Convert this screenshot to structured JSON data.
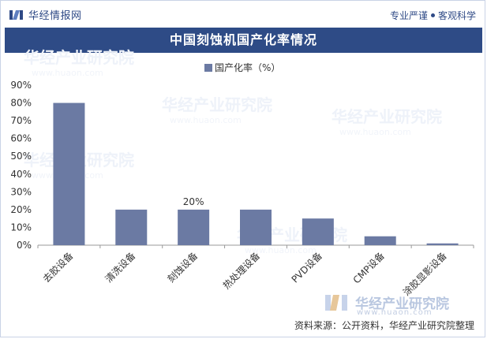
{
  "header": {
    "brand": "华经情报网",
    "tagline_left": "专业严谨",
    "tagline_right": "客观科学"
  },
  "title": "中国刻蚀机国产化率情况",
  "source": "资料来源：公开资料，华经产业研究院整理",
  "watermark": {
    "text": "华经产业研究院",
    "url": "www.huaon.com"
  },
  "colors": {
    "bar": "#6b7aa3",
    "title_bg": "#2e4b86",
    "brand": "#2f4a86"
  },
  "chart_data": {
    "type": "bar",
    "categories": [
      "去胶设备",
      "清洗设备",
      "刻蚀设备",
      "热处理设备",
      "PVD设备",
      "CMP设备",
      "涂胶显影设备"
    ],
    "series": [
      {
        "name": "国产化率（%）",
        "values": [
          80,
          20,
          20,
          20,
          15,
          5,
          1
        ]
      }
    ],
    "yticks": [
      "0%",
      "10%",
      "20%",
      "30%",
      "40%",
      "50%",
      "60%",
      "70%",
      "80%",
      "90%"
    ],
    "ylim": [
      0,
      90
    ],
    "data_labels": [
      {
        "index": 2,
        "text": "20%"
      }
    ],
    "legend": "top-center",
    "grid": false
  }
}
